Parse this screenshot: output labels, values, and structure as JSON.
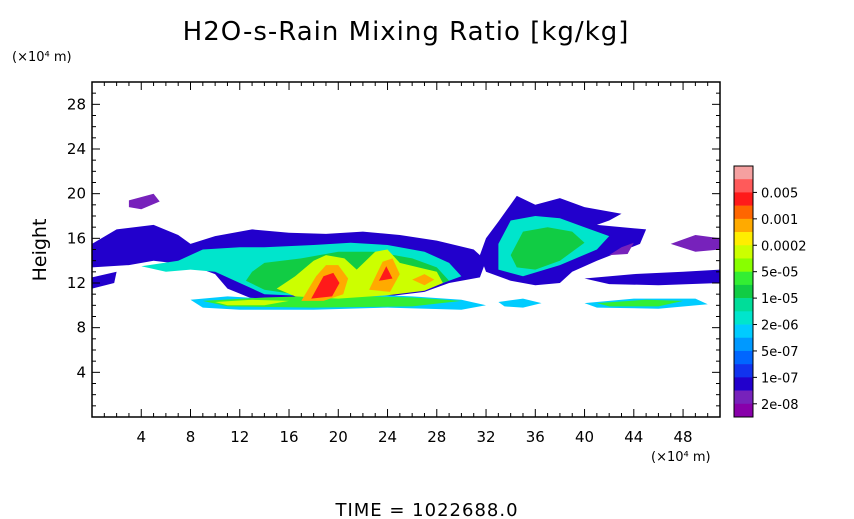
{
  "chart_data": {
    "type": "heatmap",
    "title": "H2O-s-Rain Mixing Ratio [kg/kg]",
    "ylabel": "Height",
    "y_unit": "(×10⁴ m)",
    "x_unit": "(×10⁴ m)",
    "xlim": [
      0,
      51
    ],
    "ylim": [
      0,
      30
    ],
    "x_ticks": [
      4,
      8,
      12,
      16,
      20,
      24,
      28,
      32,
      36,
      40,
      44,
      48
    ],
    "y_ticks": [
      4,
      8,
      12,
      16,
      20,
      24,
      28
    ],
    "grid": false,
    "legend_position": "right",
    "colorbar": [
      {
        "label": "",
        "color": "#f5a0a0"
      },
      {
        "label": "0.005",
        "color": "#ff5a5a"
      },
      {
        "label": "",
        "color": "#ff1a1a"
      },
      {
        "label": "0.001",
        "color": "#ff6600"
      },
      {
        "label": "",
        "color": "#ffaa00"
      },
      {
        "label": "0.0002",
        "color": "#ffee00"
      },
      {
        "label": "",
        "color": "#ccff00"
      },
      {
        "label": "5e-05",
        "color": "#88ff00"
      },
      {
        "label": "",
        "color": "#33ee33"
      },
      {
        "label": "1e-05",
        "color": "#11cc44"
      },
      {
        "label": "",
        "color": "#00dd99"
      },
      {
        "label": "2e-06",
        "color": "#00e5cc"
      },
      {
        "label": "",
        "color": "#00ccff"
      },
      {
        "label": "5e-07",
        "color": "#0099ff"
      },
      {
        "label": "",
        "color": "#0066ff"
      },
      {
        "label": "1e-07",
        "color": "#1133ee"
      },
      {
        "label": "",
        "color": "#2200cc"
      },
      {
        "label": "2e-08",
        "color": "#7722bb"
      },
      {
        "label": "",
        "color": "#8800aa"
      }
    ],
    "regions": [
      {
        "level": 16,
        "points": [
          [
            0,
            15.5
          ],
          [
            2,
            16.8
          ],
          [
            5,
            17.2
          ],
          [
            7,
            16.3
          ],
          [
            8,
            15.5
          ],
          [
            10,
            16.2
          ],
          [
            13,
            16.8
          ],
          [
            16,
            16.5
          ],
          [
            19,
            16.4
          ],
          [
            22,
            16.6
          ],
          [
            25,
            16.3
          ],
          [
            28,
            15.8
          ],
          [
            31,
            15.0
          ],
          [
            32,
            14
          ],
          [
            31.5,
            12.5
          ],
          [
            29,
            12.0
          ],
          [
            27,
            11.2
          ],
          [
            24,
            10.8
          ],
          [
            20,
            10.5
          ],
          [
            16,
            10.3
          ],
          [
            13,
            10.6
          ],
          [
            11,
            11.5
          ],
          [
            10,
            12.8
          ],
          [
            8,
            13.6
          ],
          [
            5,
            14.0
          ],
          [
            3,
            13.6
          ],
          [
            0,
            13.4
          ]
        ]
      },
      {
        "level": 16,
        "points": [
          [
            0,
            12.5
          ],
          [
            2,
            13.0
          ],
          [
            1.8,
            12.0
          ],
          [
            0,
            11.5
          ]
        ]
      },
      {
        "level": 17,
        "points": [
          [
            3,
            19.4
          ],
          [
            5,
            20.0
          ],
          [
            5.5,
            19.3
          ],
          [
            4,
            18.6
          ],
          [
            3,
            18.8
          ]
        ]
      },
      {
        "level": 16,
        "points": [
          [
            33,
            17.5
          ],
          [
            34.5,
            19.8
          ],
          [
            36,
            19.0
          ],
          [
            38,
            19.6
          ],
          [
            40,
            18.8
          ],
          [
            43,
            18.2
          ],
          [
            42,
            17.6
          ],
          [
            41,
            17.2
          ],
          [
            45,
            16.8
          ],
          [
            44.5,
            15.5
          ],
          [
            41,
            14.0
          ],
          [
            39,
            13.0
          ],
          [
            38,
            12.0
          ],
          [
            36,
            11.8
          ],
          [
            34,
            12.2
          ],
          [
            32,
            13.0
          ],
          [
            31.5,
            14.5
          ],
          [
            32,
            16.0
          ]
        ]
      },
      {
        "level": 16,
        "points": [
          [
            40,
            12.4
          ],
          [
            44,
            12.8
          ],
          [
            48,
            13.0
          ],
          [
            51,
            13.2
          ],
          [
            51,
            12.0
          ],
          [
            46,
            11.8
          ],
          [
            42,
            11.9
          ]
        ]
      },
      {
        "level": 17,
        "points": [
          [
            47,
            15.5
          ],
          [
            49,
            16.3
          ],
          [
            51,
            16.0
          ],
          [
            51,
            15.0
          ],
          [
            49,
            14.8
          ]
        ]
      },
      {
        "level": 17,
        "points": [
          [
            42,
            14.5
          ],
          [
            43,
            15.2
          ],
          [
            44,
            15.6
          ],
          [
            43.5,
            14.6
          ]
        ]
      },
      {
        "level": 12,
        "points": [
          [
            8,
            10.5
          ],
          [
            11,
            10.8
          ],
          [
            14,
            10.6
          ],
          [
            18,
            10.8
          ],
          [
            22,
            11.0
          ],
          [
            26,
            10.8
          ],
          [
            30,
            10.5
          ],
          [
            32,
            10.0
          ],
          [
            30,
            9.6
          ],
          [
            24,
            9.8
          ],
          [
            18,
            9.6
          ],
          [
            12,
            9.6
          ],
          [
            9,
            9.8
          ]
        ]
      },
      {
        "level": 12,
        "points": [
          [
            33,
            10.3
          ],
          [
            35,
            10.6
          ],
          [
            36.5,
            10.2
          ],
          [
            35,
            9.8
          ],
          [
            33.5,
            9.9
          ]
        ]
      },
      {
        "level": 12,
        "points": [
          [
            40,
            10.2
          ],
          [
            44,
            10.6
          ],
          [
            49,
            10.6
          ],
          [
            50,
            10.1
          ],
          [
            46,
            9.7
          ],
          [
            41,
            9.8
          ]
        ]
      },
      {
        "level": 11,
        "points": [
          [
            4,
            13.5
          ],
          [
            7,
            14.0
          ],
          [
            9,
            15.0
          ],
          [
            12,
            15.2
          ],
          [
            14,
            15.2
          ],
          [
            18,
            15.4
          ],
          [
            21,
            15.6
          ],
          [
            24,
            15.4
          ],
          [
            27,
            14.8
          ],
          [
            29,
            13.8
          ],
          [
            30,
            12.6
          ],
          [
            28,
            11.8
          ],
          [
            24,
            11.2
          ],
          [
            18,
            10.8
          ],
          [
            14,
            11.0
          ],
          [
            12,
            12.0
          ],
          [
            10,
            13.0
          ],
          [
            8,
            13.2
          ],
          [
            6,
            13.0
          ]
        ]
      },
      {
        "level": 11,
        "points": [
          [
            33,
            15.5
          ],
          [
            34,
            17.6
          ],
          [
            36,
            18.0
          ],
          [
            38,
            17.8
          ],
          [
            40,
            17.0
          ],
          [
            42,
            16.2
          ],
          [
            41,
            15.0
          ],
          [
            38,
            13.6
          ],
          [
            35,
            12.6
          ],
          [
            33,
            13.2
          ]
        ]
      },
      {
        "level": 9,
        "points": [
          [
            13,
            13.0
          ],
          [
            14,
            13.8
          ],
          [
            17,
            14.2
          ],
          [
            20,
            14.8
          ],
          [
            23,
            14.8
          ],
          [
            26,
            14.2
          ],
          [
            28,
            13.4
          ],
          [
            29,
            12.2
          ],
          [
            27,
            11.5
          ],
          [
            22,
            11.0
          ],
          [
            17,
            10.9
          ],
          [
            14,
            11.4
          ],
          [
            12.5,
            12.2
          ]
        ]
      },
      {
        "level": 9,
        "points": [
          [
            34,
            14.5
          ],
          [
            35,
            16.6
          ],
          [
            37,
            17.0
          ],
          [
            39,
            16.6
          ],
          [
            40,
            15.6
          ],
          [
            38,
            14.0
          ],
          [
            36,
            13.2
          ],
          [
            34.5,
            13.4
          ]
        ]
      },
      {
        "level": 8,
        "points": [
          [
            9,
            10.4
          ],
          [
            14,
            10.7
          ],
          [
            20,
            10.9
          ],
          [
            26,
            10.7
          ],
          [
            30,
            10.4
          ],
          [
            26,
            9.9
          ],
          [
            18,
            9.8
          ],
          [
            11,
            9.9
          ]
        ]
      },
      {
        "level": 8,
        "points": [
          [
            41,
            10.2
          ],
          [
            45,
            10.5
          ],
          [
            48,
            10.4
          ],
          [
            46,
            9.9
          ],
          [
            42,
            9.9
          ]
        ]
      },
      {
        "level": 6,
        "points": [
          [
            15,
            11.5
          ],
          [
            16.5,
            12.6
          ],
          [
            18,
            14.0
          ],
          [
            19,
            14.5
          ],
          [
            20.5,
            14.2
          ],
          [
            21.5,
            13.2
          ],
          [
            23,
            14.8
          ],
          [
            24,
            15.0
          ],
          [
            25,
            13.8
          ],
          [
            26.5,
            13.4
          ],
          [
            28,
            13.0
          ],
          [
            28.5,
            12.0
          ],
          [
            27,
            11.3
          ],
          [
            24,
            10.9
          ],
          [
            20,
            10.6
          ],
          [
            16.5,
            10.8
          ]
        ]
      },
      {
        "level": 6,
        "points": [
          [
            10,
            10.3
          ],
          [
            13,
            10.5
          ],
          [
            16,
            10.4
          ],
          [
            14,
            10.0
          ],
          [
            11,
            10.0
          ]
        ]
      },
      {
        "level": 4,
        "points": [
          [
            17,
            10.4
          ],
          [
            18.2,
            12.6
          ],
          [
            19,
            13.6
          ],
          [
            20,
            13.6
          ],
          [
            20.8,
            12.4
          ],
          [
            20.4,
            11.0
          ],
          [
            18.8,
            10.4
          ]
        ]
      },
      {
        "level": 4,
        "points": [
          [
            22.5,
            11.4
          ],
          [
            23.6,
            13.9
          ],
          [
            24.4,
            14.2
          ],
          [
            25,
            12.8
          ],
          [
            24.2,
            11.2
          ]
        ]
      },
      {
        "level": 4,
        "points": [
          [
            26,
            12.3
          ],
          [
            27,
            12.8
          ],
          [
            27.8,
            12.3
          ],
          [
            27,
            11.8
          ]
        ]
      },
      {
        "level": 2,
        "points": [
          [
            17.8,
            10.6
          ],
          [
            18.8,
            12.6
          ],
          [
            19.6,
            12.9
          ],
          [
            20.1,
            12.0
          ],
          [
            19.5,
            10.8
          ]
        ]
      },
      {
        "level": 2,
        "points": [
          [
            23.3,
            12.2
          ],
          [
            23.9,
            13.5
          ],
          [
            24.4,
            12.4
          ]
        ]
      }
    ]
  },
  "footer": {
    "time_label": "TIME = 1022688.0"
  }
}
